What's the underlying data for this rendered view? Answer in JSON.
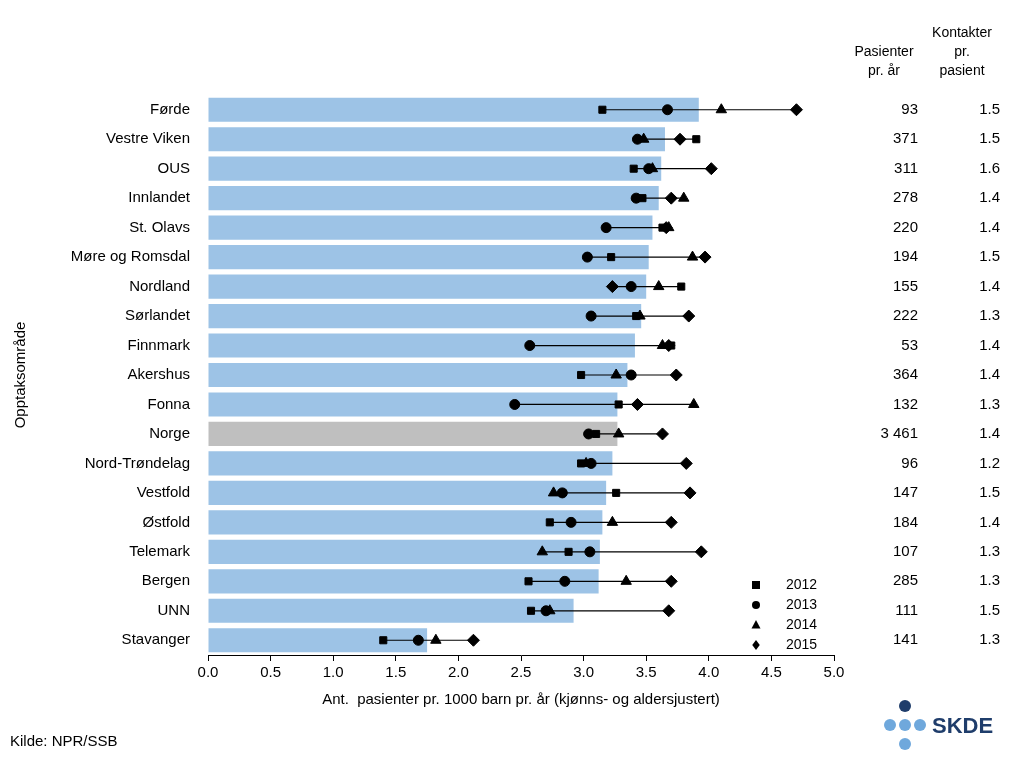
{
  "chart_data": {
    "type": "bar",
    "orientation": "horizontal",
    "x_label": "Ant.  pasienter pr. 1000 barn pr. år (kjønns- og aldersjustert)",
    "y_label": "Opptaksområde",
    "categories": [
      "Førde",
      "Vestre Viken",
      "OUS",
      "Innlandet",
      "St. Olavs",
      "Møre og Romsdal",
      "Nordland",
      "Sørlandet",
      "Finnmark",
      "Akershus",
      "Fonna",
      "Norge",
      "Nord-Trøndelag",
      "Vestfold",
      "Østfold",
      "Telemark",
      "Bergen",
      "UNN",
      "Stavanger"
    ],
    "values": [
      3.92,
      3.65,
      3.62,
      3.6,
      3.55,
      3.52,
      3.5,
      3.46,
      3.41,
      3.35,
      3.27,
      3.27,
      3.23,
      3.18,
      3.15,
      3.13,
      3.12,
      2.92,
      1.75
    ],
    "colors": [
      "#9dc3e6",
      "#9dc3e6",
      "#9dc3e6",
      "#9dc3e6",
      "#9dc3e6",
      "#9dc3e6",
      "#9dc3e6",
      "#9dc3e6",
      "#9dc3e6",
      "#9dc3e6",
      "#9dc3e6",
      "#bfbfbf",
      "#9dc3e6",
      "#9dc3e6",
      "#9dc3e6",
      "#9dc3e6",
      "#9dc3e6",
      "#9dc3e6",
      "#9dc3e6"
    ],
    "series": [
      {
        "name": "2012",
        "type": "scatter",
        "marker": "square",
        "color": "#000000",
        "values": [
          3.15,
          3.9,
          3.4,
          3.47,
          3.63,
          3.22,
          3.78,
          3.42,
          3.7,
          2.98,
          3.28,
          3.1,
          2.98,
          3.26,
          2.73,
          2.88,
          2.56,
          2.58,
          1.4
        ]
      },
      {
        "name": "2013",
        "type": "scatter",
        "marker": "circle",
        "color": "#000000",
        "values": [
          3.67,
          3.43,
          3.52,
          3.42,
          3.18,
          3.03,
          3.38,
          3.06,
          2.57,
          3.38,
          2.45,
          3.04,
          3.06,
          2.83,
          2.9,
          3.05,
          2.85,
          2.7,
          1.68
        ]
      },
      {
        "name": "2014",
        "type": "scatter",
        "marker": "triangle",
        "color": "#000000",
        "values": [
          4.1,
          3.48,
          3.55,
          3.8,
          3.68,
          3.87,
          3.6,
          3.45,
          3.63,
          3.26,
          3.88,
          3.28,
          3.02,
          2.76,
          3.23,
          2.67,
          3.34,
          2.73,
          1.82
        ]
      },
      {
        "name": "2015",
        "type": "scatter",
        "marker": "diamond",
        "color": "#000000",
        "values": [
          4.7,
          3.77,
          4.02,
          3.7,
          3.66,
          3.97,
          3.23,
          3.84,
          3.68,
          3.74,
          3.43,
          3.63,
          3.82,
          3.85,
          3.7,
          3.94,
          3.7,
          3.68,
          2.12
        ]
      }
    ],
    "xlim": [
      0,
      5
    ],
    "xticks": [
      {
        "value": 0,
        "label": "0.0"
      },
      {
        "value": 0.5,
        "label": "0.5"
      },
      {
        "value": 1,
        "label": "1.0"
      },
      {
        "value": 1.5,
        "label": "1.5"
      },
      {
        "value": 2,
        "label": "2.0"
      },
      {
        "value": 2.5,
        "label": "2.5"
      },
      {
        "value": 3,
        "label": "3.0"
      },
      {
        "value": 3.5,
        "label": "3.5"
      },
      {
        "value": 4,
        "label": "4.0"
      },
      {
        "value": 4.5,
        "label": "4.5"
      },
      {
        "value": 5,
        "label": "5.0"
      }
    ],
    "grid": false,
    "legend": "lower right",
    "table": {
      "columns": [
        {
          "header": [
            "Pasienter",
            "pr. år"
          ],
          "values": [
            93,
            371,
            311,
            278,
            220,
            194,
            155,
            222,
            53,
            364,
            132,
            3461,
            96,
            147,
            184,
            107,
            285,
            111,
            141
          ],
          "value_labels": [
            "93",
            "371",
            "311",
            "278",
            "220",
            "194",
            "155",
            "222",
            "53",
            "364",
            "132",
            "3 461",
            "96",
            "147",
            "184",
            "107",
            "285",
            "111",
            "141"
          ]
        },
        {
          "header": [
            "Kontakter",
            "pr.",
            "pasient"
          ],
          "values": [
            1.5,
            1.5,
            1.6,
            1.4,
            1.4,
            1.5,
            1.4,
            1.3,
            1.4,
            1.4,
            1.3,
            1.4,
            1.2,
            1.5,
            1.4,
            1.3,
            1.3,
            1.5,
            1.3
          ]
        }
      ]
    },
    "source": "Kilde: NPR/SSB",
    "logo": "SKDE"
  }
}
